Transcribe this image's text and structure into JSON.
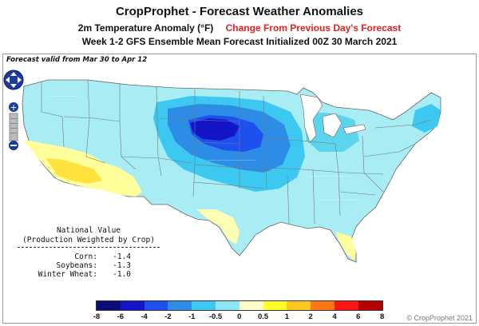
{
  "header": {
    "title": "CropProphet - Forecast Weather Anomalies",
    "subtitle_left": "2m Temperature Anomaly (°F)",
    "subtitle_right": "Change From Previous Day's Forecast",
    "subtitle2": "Week 1-2 GFS Ensemble Mean Forecast Initialized 00Z 30 March 2021"
  },
  "map": {
    "valid_label": "Forecast valid from Mar 30 to Apr 12",
    "controls": {
      "zoom_in": "+",
      "zoom_out": "−"
    }
  },
  "national_value": {
    "title_line1": "National Value",
    "title_line2": "(Production Weighted by Crop)",
    "rows": [
      {
        "label": "Corn:",
        "value": "-1.4"
      },
      {
        "label": "Soybeans:",
        "value": "-1.3"
      },
      {
        "label": "Winter Wheat:",
        "value": "-1.0"
      }
    ]
  },
  "legend": {
    "ticks": [
      "-8",
      "-6",
      "-4",
      "-2",
      "-1",
      "-0.5",
      "0",
      "0.5",
      "1",
      "2",
      "4",
      "6",
      "8"
    ],
    "colors": [
      "#0b0b7a",
      "#1414c8",
      "#1e50f0",
      "#2d8ce6",
      "#3cc8f0",
      "#8ce6f5",
      "#ffffc8",
      "#ffff28",
      "#ffc81e",
      "#ff7814",
      "#ff1414",
      "#b40000"
    ]
  },
  "copyright": "© CropProphet 2021"
}
